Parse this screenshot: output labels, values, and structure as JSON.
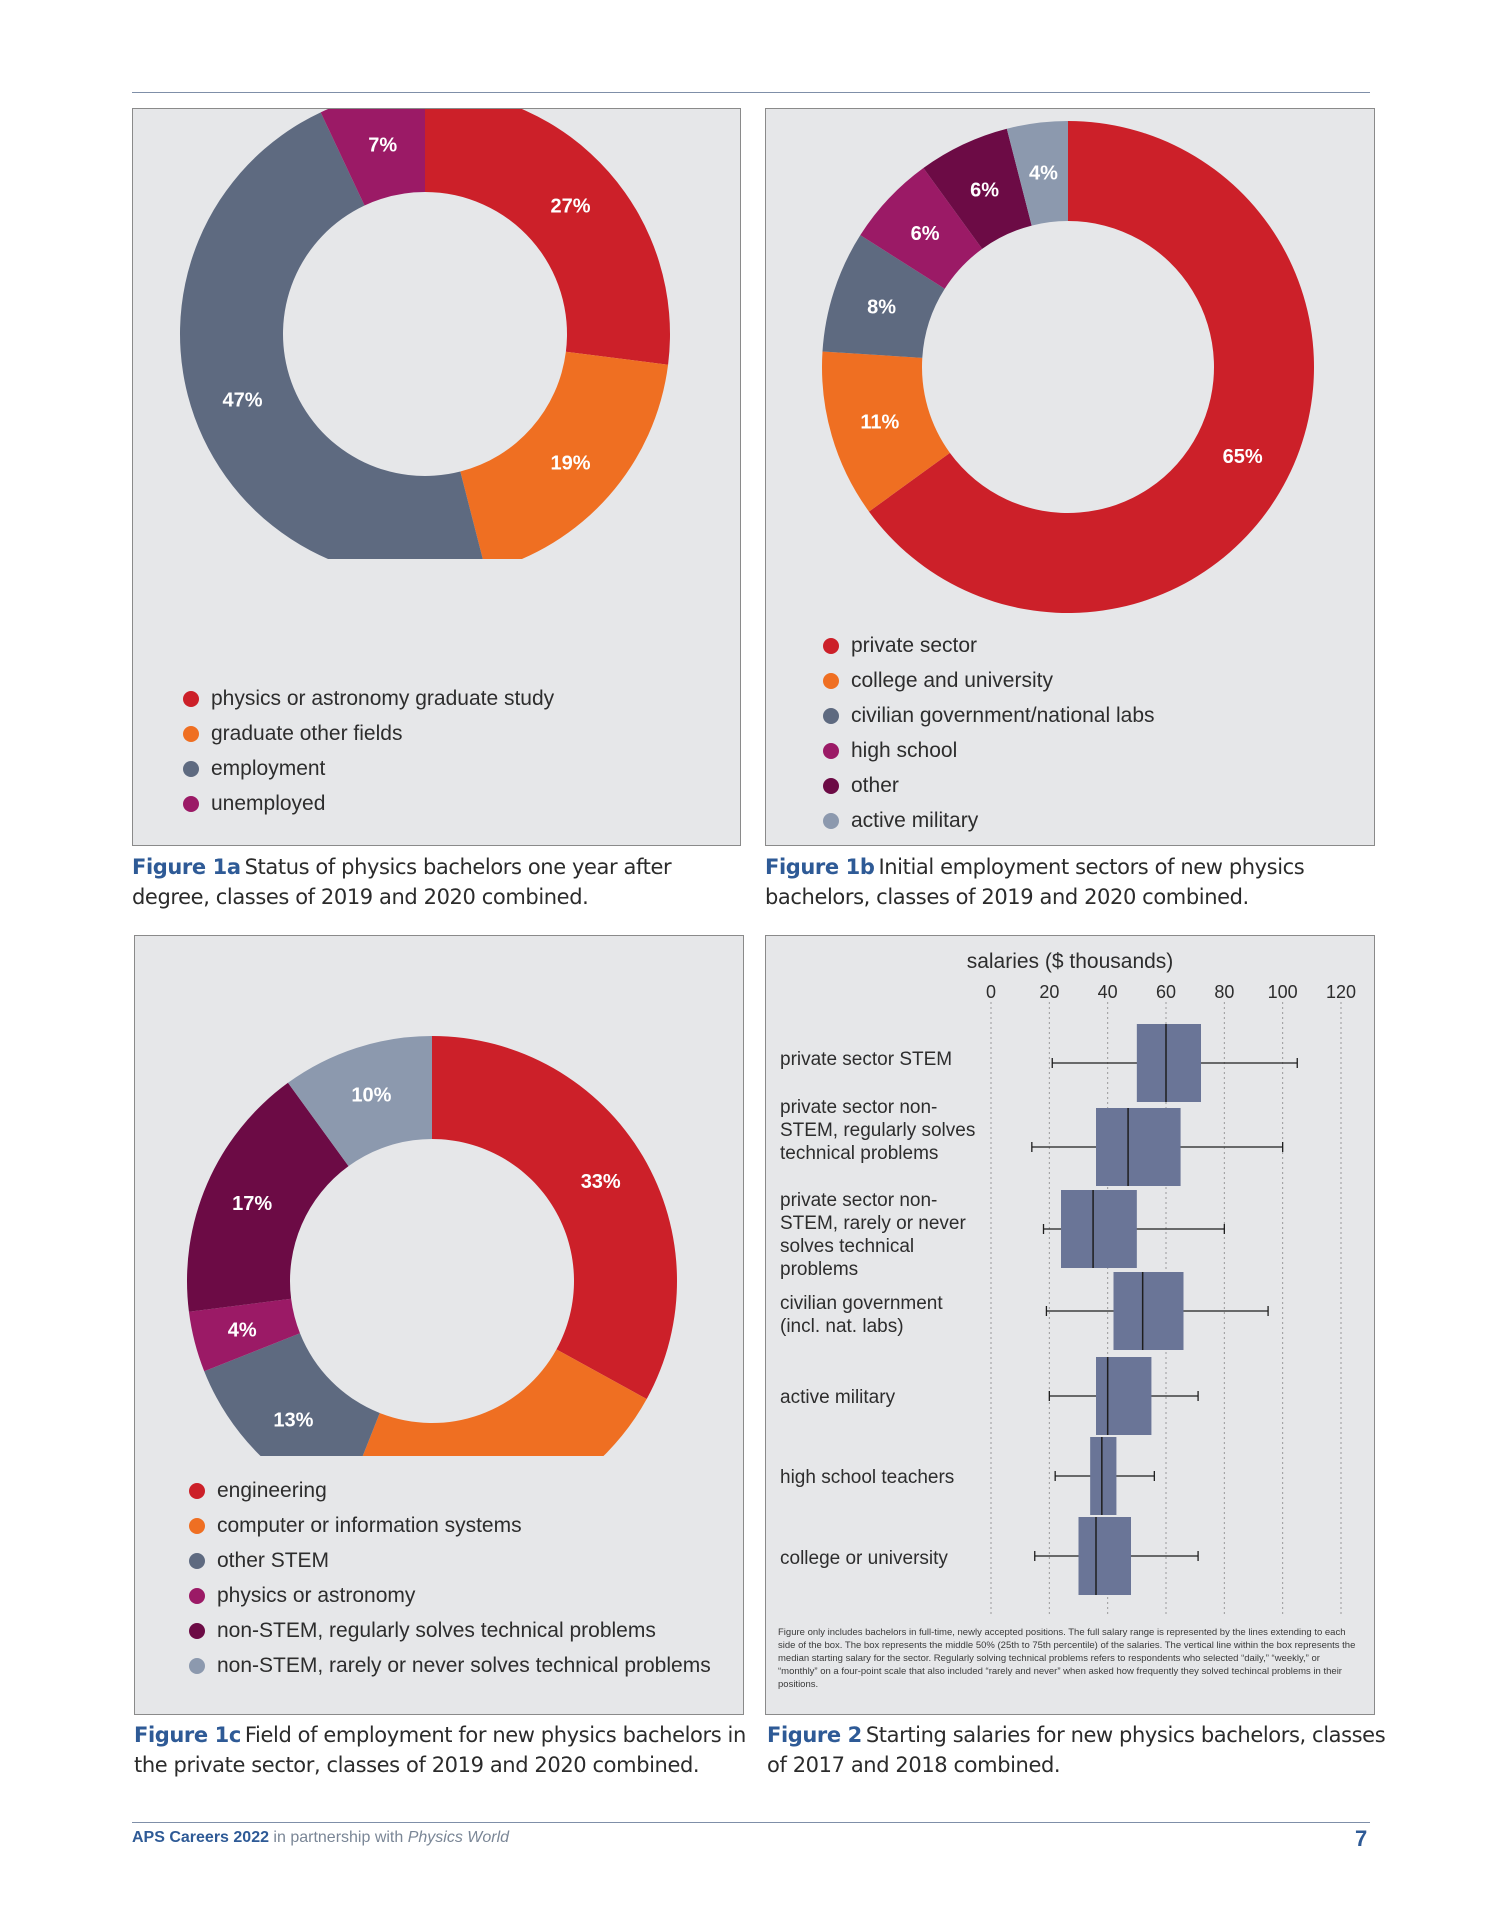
{
  "chart_data": [
    {
      "id": "fig1a",
      "type": "pie",
      "slices": [
        {
          "label": "physics or astronomy graduate study",
          "value": 27,
          "pct": "27%",
          "color": "#cc2029"
        },
        {
          "label": "graduate other fields",
          "value": 19,
          "pct": "19%",
          "color": "#ef6f22"
        },
        {
          "label": "employment",
          "value": 47,
          "pct": "47%",
          "color": "#5e6a80"
        },
        {
          "label": "unemployed",
          "value": 7,
          "pct": "7%",
          "color": "#9b1a66"
        }
      ],
      "caption_fig": "Figure 1a",
      "caption": "Status of physics bachelors one year after degree, classes of 2019 and 2020 combined."
    },
    {
      "id": "fig1b",
      "type": "pie",
      "slices": [
        {
          "label": "private sector",
          "value": 65,
          "pct": "65%",
          "color": "#cc2029"
        },
        {
          "label": "college and university",
          "value": 11,
          "pct": "11%",
          "color": "#ef6f22"
        },
        {
          "label": "civilian government/national labs",
          "value": 8,
          "pct": "8%",
          "color": "#5e6a80"
        },
        {
          "label": "high school",
          "value": 6,
          "pct": "6%",
          "color": "#9b1a66"
        },
        {
          "label": "other",
          "value": 6,
          "pct": "6%",
          "color": "#6c0b45"
        },
        {
          "label": "active military",
          "value": 4,
          "pct": "4%",
          "color": "#8c99ae"
        }
      ],
      "caption_fig": "Figure 1b",
      "caption": "Initial employment sectors of new physics bachelors, classes of 2019 and 2020 combined."
    },
    {
      "id": "fig1c",
      "type": "pie",
      "slices": [
        {
          "label": "engineering",
          "value": 33,
          "pct": "33%",
          "color": "#cc2029"
        },
        {
          "label": "computer or information systems",
          "value": 23,
          "pct": "23%",
          "color": "#ef6f22"
        },
        {
          "label": "other STEM",
          "value": 13,
          "pct": "13%",
          "color": "#5e6a80"
        },
        {
          "label": "physics or astronomy",
          "value": 4,
          "pct": "4%",
          "color": "#9b1a66"
        },
        {
          "label": "non-STEM, regularly solves technical problems",
          "value": 17,
          "pct": "17%",
          "color": "#6c0b45"
        },
        {
          "label": "non-STEM, rarely or never solves technical problems",
          "value": 10,
          "pct": "10%",
          "color": "#8c99ae"
        }
      ],
      "caption_fig": "Figure 1c",
      "caption": "Field of employment for new physics bachelors in the private sector, classes of 2019 and 2020 combined."
    },
    {
      "id": "fig2",
      "type": "boxplot",
      "title": "salaries ($ thousands)",
      "xlim": [
        0,
        120
      ],
      "xticks": [
        0,
        20,
        40,
        60,
        80,
        100,
        120
      ],
      "grid": true,
      "box_color": "#6a7597",
      "categories": [
        {
          "label": "private sector STEM",
          "min": 21,
          "q1": 50,
          "median": 60,
          "q3": 72,
          "max": 105
        },
        {
          "label": "private sector non-STEM, regularly solves technical problems",
          "min": 14,
          "q1": 36,
          "median": 47,
          "q3": 65,
          "max": 100
        },
        {
          "label": "private sector non-STEM, rarely or never solves technical problems",
          "min": 18,
          "q1": 24,
          "median": 35,
          "q3": 50,
          "max": 80
        },
        {
          "label": "civilian government (incl. nat. labs)",
          "min": 19,
          "q1": 42,
          "median": 52,
          "q3": 66,
          "max": 95
        },
        {
          "label": "active military",
          "min": 20,
          "q1": 36,
          "median": 40,
          "q3": 55,
          "max": 71
        },
        {
          "label": "high school teachers",
          "min": 22,
          "q1": 34,
          "median": 38,
          "q3": 43,
          "max": 56
        },
        {
          "label": "college or university",
          "min": 15,
          "q1": 30,
          "median": 36,
          "q3": 48,
          "max": 71
        }
      ],
      "note": "Figure only includes bachelors in full-time, newly accepted positions. The full salary range is represented by the lines extending to each side of the box. The box represents the middle 50% (25th to 75th percentile) of the salaries. The vertical line within the box represents the median starting salary for the sector. Regularly solving technical problems refers to respondents who selected “daily,” “weekly,” or “monthly” on a four-point scale that also included “rarely and never” when asked how frequently they solved techincal problems in their positions.",
      "caption_fig": "Figure 2",
      "caption": "Starting salaries for new physics bachelors, classes of 2017 and 2018 combined."
    }
  ],
  "footer": {
    "brand": "APS Careers 2022",
    "text": " in partnership with ",
    "partner": "Physics World",
    "page": "7"
  }
}
